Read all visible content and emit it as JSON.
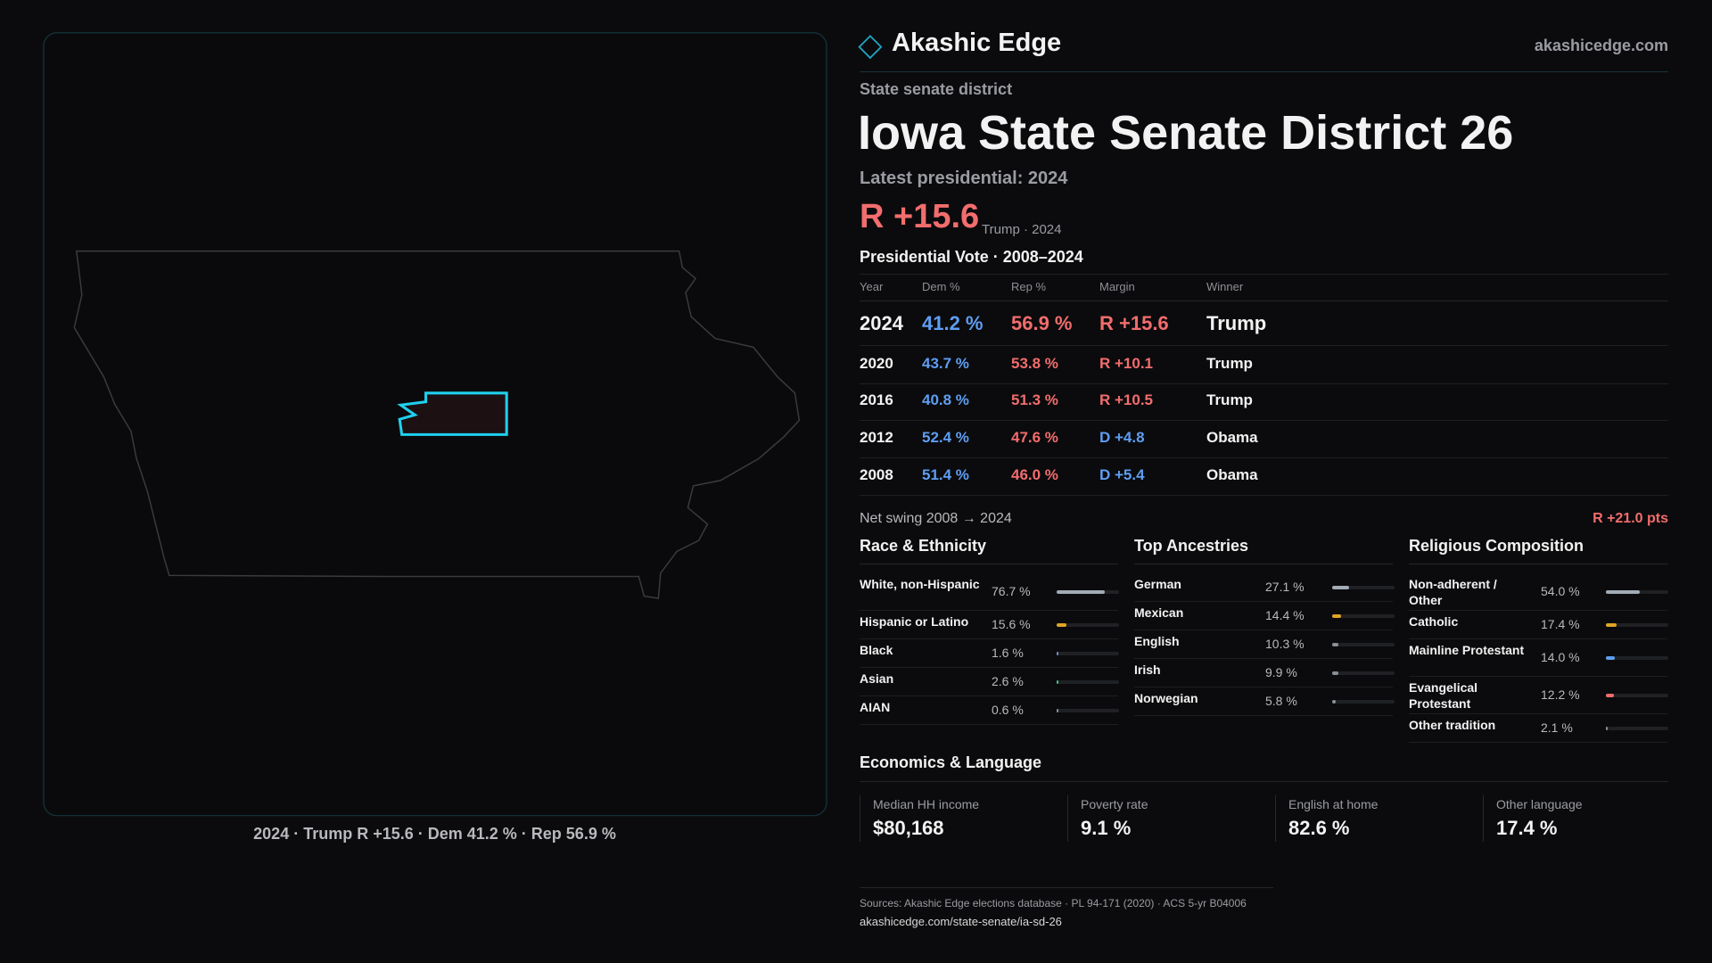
{
  "brand": {
    "name": "Akashic Edge",
    "site": "akashicedge.com"
  },
  "header": {
    "kicker": "State senate district",
    "title": "Iowa State Senate District 26",
    "latest": "Latest presidential: 2024",
    "margin": "R +15.6",
    "margin_note": "Trump · 2024"
  },
  "map": {
    "caption": "2024 · Trump R +15.6 · Dem 41.2 % · Rep 56.9 %"
  },
  "vote_table": {
    "title": "Presidential Vote · 2008–2024",
    "columns": [
      "Year",
      "Dem %",
      "Rep %",
      "Margin",
      "Winner"
    ],
    "rows": [
      {
        "year": "2024",
        "dem": "41.2 %",
        "rep": "56.9 %",
        "margin": "R +15.6",
        "winner": "Trump",
        "margin_color": "#f26d6d"
      },
      {
        "year": "2020",
        "dem": "43.7 %",
        "rep": "53.8 %",
        "margin": "R +10.1",
        "winner": "Trump",
        "margin_color": "#f26d6d"
      },
      {
        "year": "2016",
        "dem": "40.8 %",
        "rep": "51.3 %",
        "margin": "R +10.5",
        "winner": "Trump",
        "margin_color": "#f26d6d"
      },
      {
        "year": "2012",
        "dem": "52.4 %",
        "rep": "47.6 %",
        "margin": "D +4.8",
        "winner": "Obama",
        "margin_color": "#5f9ef2"
      },
      {
        "year": "2008",
        "dem": "51.4 %",
        "rep": "46.0 %",
        "margin": "D +5.4",
        "winner": "Obama",
        "margin_color": "#5f9ef2"
      }
    ]
  },
  "swing": {
    "label": "Net swing 2008 → 2024",
    "value": "R +21.0 pts"
  },
  "race": {
    "title": "Race & Ethnicity",
    "rows": [
      {
        "label": "White, non-Hispanic",
        "value": 76.7,
        "value_label": "76.7 %",
        "color": "#a3abb6"
      },
      {
        "label": "Hispanic or Latino",
        "value": 15.6,
        "value_label": "15.6 %",
        "color": "#e0a526"
      },
      {
        "label": "Black",
        "value": 1.6,
        "value_label": "1.6 %",
        "color": "#6f8fc4"
      },
      {
        "label": "Asian",
        "value": 2.6,
        "value_label": "2.6 %",
        "color": "#3fc38a"
      },
      {
        "label": "AIAN",
        "value": 0.6,
        "value_label": "0.6 %",
        "color": "#8a8f96"
      }
    ]
  },
  "ancestry": {
    "title": "Top Ancestries",
    "rows": [
      {
        "label": "German",
        "value": 27.1,
        "value_label": "27.1 %",
        "color": "#a3abb6"
      },
      {
        "label": "Mexican",
        "value": 14.4,
        "value_label": "14.4 %",
        "color": "#e0a526"
      },
      {
        "label": "English",
        "value": 10.3,
        "value_label": "10.3 %",
        "color": "#8a8f96"
      },
      {
        "label": "Irish",
        "value": 9.9,
        "value_label": "9.9 %",
        "color": "#8a8f96"
      },
      {
        "label": "Norwegian",
        "value": 5.8,
        "value_label": "5.8 %",
        "color": "#8a8f96"
      }
    ]
  },
  "religion": {
    "title": "Religious Composition",
    "rows": [
      {
        "label": "Non-adherent / Other",
        "value": 54.0,
        "value_label": "54.0 %",
        "color": "#a3abb6"
      },
      {
        "label": "Catholic",
        "value": 17.4,
        "value_label": "17.4 %",
        "color": "#e0a526"
      },
      {
        "label": "Mainline Protestant",
        "value": 14.0,
        "value_label": "14.0 %",
        "color": "#5f9ef2"
      },
      {
        "label": "Evangelical Protestant",
        "value": 12.2,
        "value_label": "12.2 %",
        "color": "#f26d6d"
      },
      {
        "label": "Other tradition",
        "value": 2.1,
        "value_label": "2.1 %",
        "color": "#8a8f96"
      }
    ]
  },
  "economics": {
    "title": "Economics & Language",
    "cards": [
      {
        "label": "Median HH income",
        "value": "$80,168"
      },
      {
        "label": "Poverty rate",
        "value": "9.1 %"
      },
      {
        "label": "English at home",
        "value": "82.6 %"
      },
      {
        "label": "Other language",
        "value": "17.4 %"
      }
    ]
  },
  "footer": {
    "sources": "Sources: Akashic Edge elections database · PL 94-171 (2020) · ACS 5-yr B04006",
    "url": "akashicedge.com/state-senate/ia-sd-26"
  }
}
